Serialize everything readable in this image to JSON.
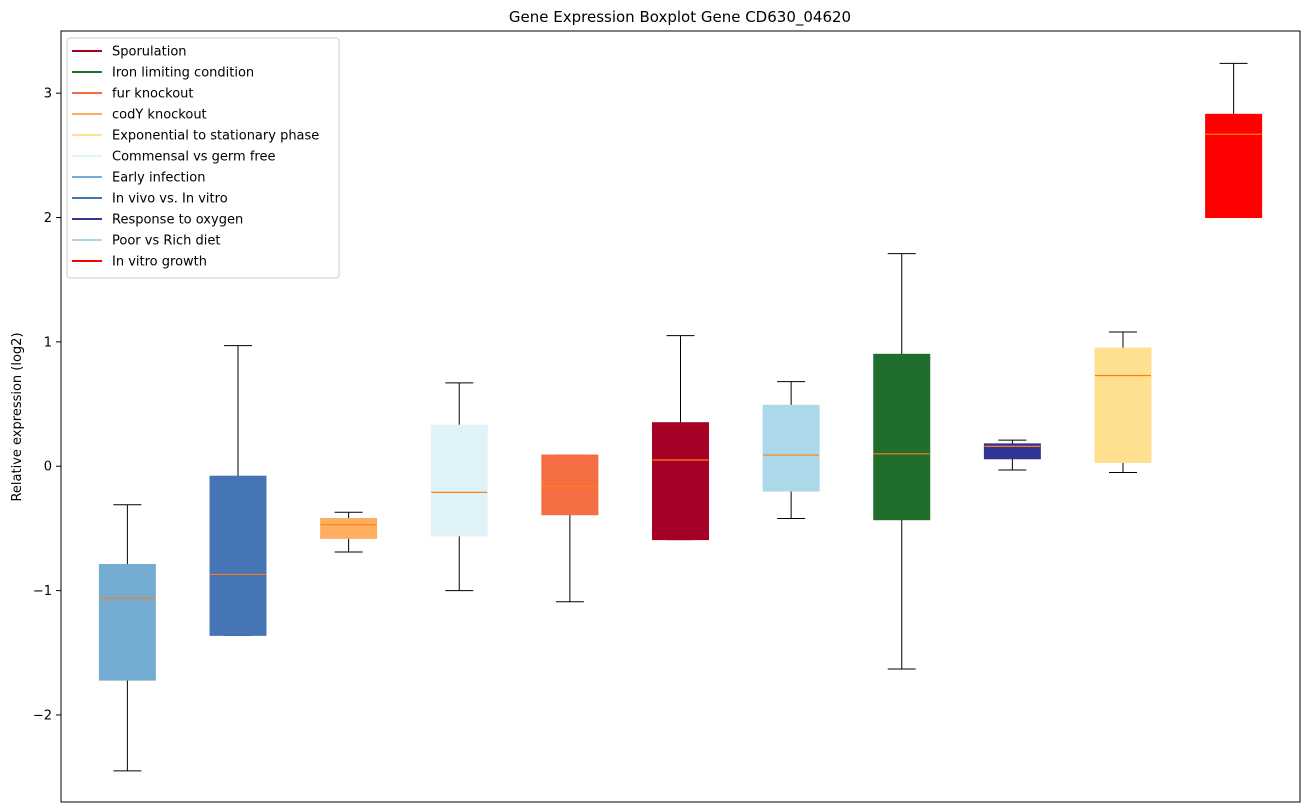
{
  "chart_data": {
    "type": "boxplot",
    "title": "Gene Expression Boxplot Gene CD630_04620",
    "xlabel": "",
    "ylabel": "Relative expression (log2)",
    "ylim": [
      -2.7,
      3.5
    ],
    "yticks": [
      -2,
      -1,
      0,
      1,
      2,
      3
    ],
    "ytick_labels": [
      "−2",
      "−1",
      "0",
      "1",
      "2",
      "3"
    ],
    "median_color": "#ff7f0e",
    "legend": {
      "position": "top-left",
      "entries": [
        {
          "label": "Sporulation",
          "color": "#a50026"
        },
        {
          "label": "Iron limiting condition",
          "color": "#216d2c"
        },
        {
          "label": "fur knockout",
          "color": "#f46d43"
        },
        {
          "label": "codY knockout",
          "color": "#fdae61"
        },
        {
          "label": "Exponential to stationary phase",
          "color": "#fee090"
        },
        {
          "label": "Commensal vs germ free",
          "color": "#e0f3f8"
        },
        {
          "label": "Early infection",
          "color": "#74add1"
        },
        {
          "label": "In vivo vs. In vitro",
          "color": "#4575b4"
        },
        {
          "label": "Response to oxygen",
          "color": "#313695"
        },
        {
          "label": "Poor vs Rich diet",
          "color": "#abd9e9"
        },
        {
          "label": "In vitro growth",
          "color": "#ff0000"
        }
      ]
    },
    "boxes": [
      {
        "condition": "Early infection",
        "color": "#74add1",
        "whislo": -2.45,
        "q1": -1.72,
        "med": -1.06,
        "q3": -0.79,
        "whishi": -0.31
      },
      {
        "condition": "In vivo vs. In vitro",
        "color": "#4575b4",
        "whislo": -1.36,
        "q1": -1.36,
        "med": -0.87,
        "q3": -0.08,
        "whishi": 0.97
      },
      {
        "condition": "codY knockout",
        "color": "#fdae61",
        "whislo": -0.69,
        "q1": -0.58,
        "med": -0.47,
        "q3": -0.42,
        "whishi": -0.37
      },
      {
        "condition": "Commensal vs germ free",
        "color": "#e0f3f8",
        "whislo": -1.0,
        "q1": -0.56,
        "med": -0.21,
        "q3": 0.33,
        "whishi": 0.67
      },
      {
        "condition": "fur knockout",
        "color": "#f46d43",
        "whislo": -1.09,
        "q1": -0.39,
        "med": -0.16,
        "q3": 0.09,
        "whishi": 0.09
      },
      {
        "condition": "Sporulation",
        "color": "#a50026",
        "whislo": -0.59,
        "q1": -0.59,
        "med": 0.05,
        "q3": 0.35,
        "whishi": 1.05
      },
      {
        "condition": "Poor vs Rich diet",
        "color": "#abd9e9",
        "whislo": -0.42,
        "q1": -0.2,
        "med": 0.09,
        "q3": 0.49,
        "whishi": 0.68
      },
      {
        "condition": "Iron limiting condition",
        "color": "#216d2c",
        "whislo": -1.63,
        "q1": -0.43,
        "med": 0.1,
        "q3": 0.9,
        "whishi": 1.71
      },
      {
        "condition": "Response to oxygen",
        "color": "#313695",
        "whislo": -0.03,
        "q1": 0.06,
        "med": 0.16,
        "q3": 0.18,
        "whishi": 0.21
      },
      {
        "condition": "Exponential to stationary phase",
        "color": "#fee090",
        "whislo": -0.05,
        "q1": 0.03,
        "med": 0.73,
        "q3": 0.95,
        "whishi": 1.08
      },
      {
        "condition": "In vitro growth",
        "color": "#ff0000",
        "whislo": 2.0,
        "q1": 2.0,
        "med": 2.67,
        "q3": 2.83,
        "whishi": 3.24
      }
    ]
  }
}
